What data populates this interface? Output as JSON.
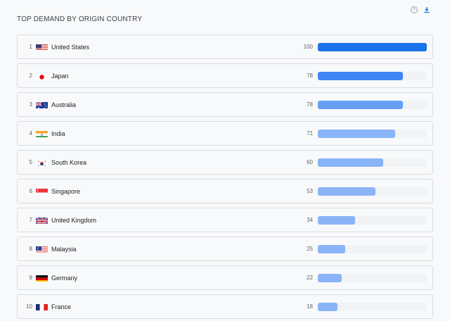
{
  "header": {
    "title": "TOP DEMAND BY ORIGIN COUNTRY"
  },
  "toolbar": {
    "help_icon": "?",
    "download_icon": "download-icon"
  },
  "colors": {
    "bar_dark": "#1a73e8",
    "bar_mid": "#4285f4",
    "bar_light1": "#669df6",
    "bar_light": "#8ab4f8",
    "track": "#f1f3f4"
  },
  "rows": [
    {
      "rank": "1",
      "country": "United States",
      "value": "100",
      "pct": 100,
      "color": "#1a73e8",
      "flag": "us"
    },
    {
      "rank": "2",
      "country": "Japan",
      "value": "78",
      "pct": 78,
      "color": "#4285f4",
      "flag": "jp"
    },
    {
      "rank": "3",
      "country": "Australia",
      "value": "78",
      "pct": 78,
      "color": "#669df6",
      "flag": "au"
    },
    {
      "rank": "4",
      "country": "India",
      "value": "71",
      "pct": 71,
      "color": "#8ab4f8",
      "flag": "in"
    },
    {
      "rank": "5",
      "country": "South Korea",
      "value": "60",
      "pct": 60,
      "color": "#8ab4f8",
      "flag": "kr"
    },
    {
      "rank": "6",
      "country": "Singapore",
      "value": "53",
      "pct": 53,
      "color": "#8ab4f8",
      "flag": "sg"
    },
    {
      "rank": "7",
      "country": "United Kingdom",
      "value": "34",
      "pct": 34,
      "color": "#8ab4f8",
      "flag": "gb"
    },
    {
      "rank": "8",
      "country": "Malaysia",
      "value": "25",
      "pct": 25,
      "color": "#8ab4f8",
      "flag": "my"
    },
    {
      "rank": "9",
      "country": "Germany",
      "value": "22",
      "pct": 22,
      "color": "#8ab4f8",
      "flag": "de"
    },
    {
      "rank": "10",
      "country": "France",
      "value": "18",
      "pct": 18,
      "color": "#8ab4f8",
      "flag": "fr"
    }
  ]
}
